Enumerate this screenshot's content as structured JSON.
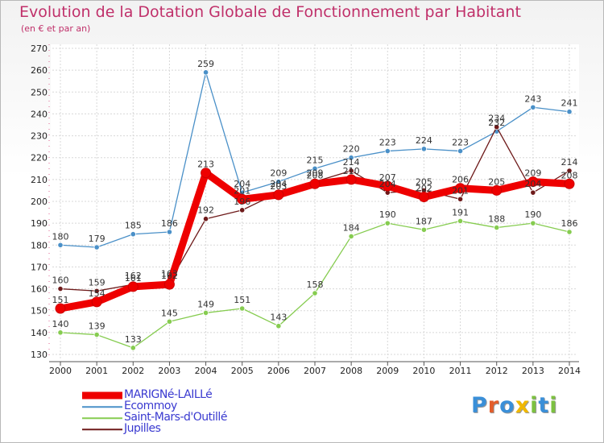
{
  "chart_data": {
    "type": "line",
    "title": "Evolution de la Dotation Globale de Fonctionnement par Habitant",
    "subtitle": "(en € et par an)",
    "categories": [
      "2000",
      "2001",
      "2002",
      "2003",
      "2004",
      "2005",
      "2006",
      "2007",
      "2008",
      "2009",
      "2010",
      "2011",
      "2012",
      "2013",
      "2014"
    ],
    "ylim": [
      130,
      270
    ],
    "yticks": [
      130,
      140,
      150,
      160,
      170,
      180,
      190,
      200,
      210,
      220,
      230,
      240,
      250,
      260,
      270
    ],
    "grid": true,
    "series": [
      {
        "name": "MARIGNé-LAILLé",
        "color": "#ee0000",
        "values": [
          151,
          154,
          161,
          162,
          213,
          201,
          203,
          208,
          210,
          207,
          202,
          206,
          205,
          209,
          208
        ],
        "labels": [
          "151",
          "154",
          "161",
          "162",
          "213",
          "201",
          "203",
          "208",
          "210",
          "207",
          "202",
          "206",
          "205",
          "209",
          "208"
        ]
      },
      {
        "name": "Ecommoy",
        "color": "#4a90c8",
        "values": [
          180,
          179,
          185,
          186,
          259,
          204,
          209,
          215,
          220,
          223,
          224,
          223,
          232,
          243,
          241
        ],
        "labels": [
          "180",
          "179",
          "185",
          "186",
          "259",
          "204",
          "209",
          "215",
          "220",
          "223",
          "224",
          "223",
          "232",
          "243",
          "241"
        ]
      },
      {
        "name": "Saint-Mars-d'Outillé",
        "color": "#86cc50",
        "values": [
          140,
          139,
          133,
          145,
          149,
          151,
          143,
          158,
          184,
          190,
          187,
          191,
          188,
          190,
          186
        ],
        "labels": [
          "140",
          "139",
          "133",
          "145",
          "149",
          "151",
          "143",
          "158",
          "184",
          "190",
          "187",
          "191",
          "188",
          "190",
          "186"
        ]
      },
      {
        "name": "Jupilles",
        "color": "#6e1a1a",
        "values": [
          160,
          159,
          162,
          163,
          192,
          196,
          204,
          209,
          214,
          204,
          205,
          201,
          234,
          204,
          214
        ],
        "labels": [
          "160",
          "159",
          "162",
          "163",
          "192",
          "196",
          "204",
          "209",
          "214",
          "204",
          "205",
          "201",
          "234",
          "204",
          "214"
        ]
      }
    ]
  },
  "logo": {
    "text": "Proxiti",
    "colors": [
      "#3a8fd8",
      "#e35d2b",
      "#3a8fd8",
      "#f0b800",
      "#7cc140",
      "#3a8fd8",
      "#7cc140"
    ]
  }
}
